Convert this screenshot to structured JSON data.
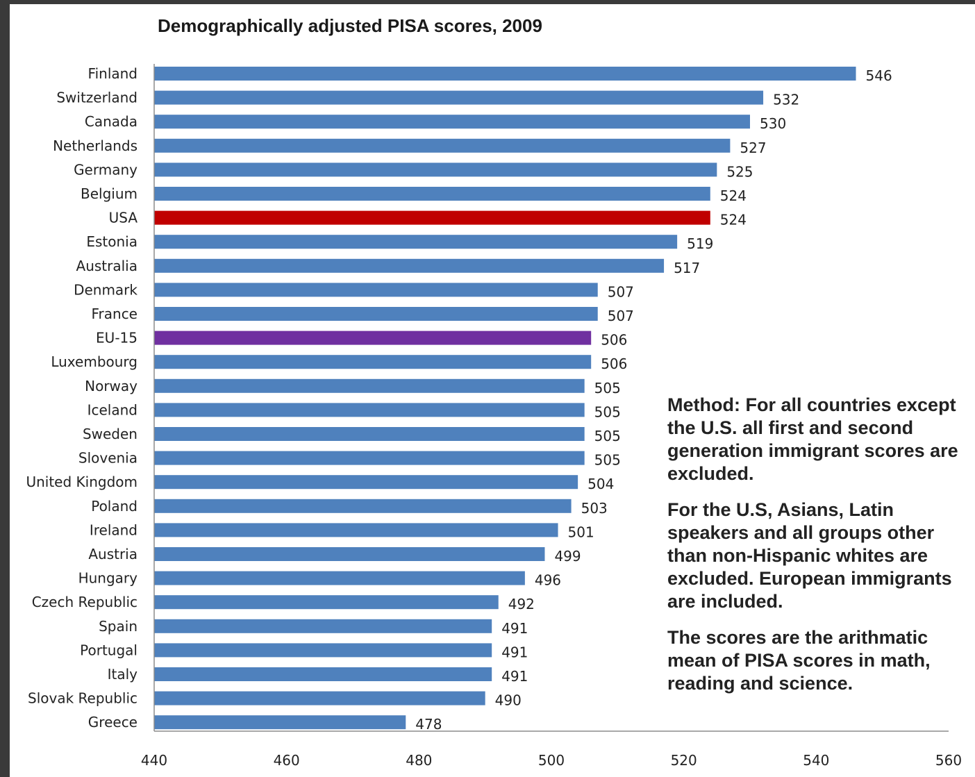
{
  "chart_data": {
    "type": "bar",
    "orientation": "horizontal",
    "title": "Demographically adjusted PISA scores, 2009",
    "categories": [
      "Finland",
      "Switzerland",
      "Canada",
      "Netherlands",
      "Germany",
      "Belgium",
      "USA",
      "Estonia",
      "Australia",
      "Denmark",
      "France",
      "EU-15",
      "Luxembourg",
      "Norway",
      "Iceland",
      "Sweden",
      "Slovenia",
      "United Kingdom",
      "Poland",
      "Ireland",
      "Austria",
      "Hungary",
      "Czech Republic",
      "Spain",
      "Portugal",
      "Italy",
      "Slovak Republic",
      "Greece"
    ],
    "values": [
      546,
      532,
      530,
      527,
      525,
      524,
      524,
      519,
      517,
      507,
      507,
      506,
      506,
      505,
      505,
      505,
      505,
      504,
      503,
      501,
      499,
      496,
      492,
      491,
      491,
      491,
      490,
      478
    ],
    "xlim": [
      440,
      560
    ],
    "xticks": [
      440,
      460,
      480,
      500,
      520,
      540,
      560
    ],
    "grid": false,
    "colors": {
      "default": "#4f81bd",
      "highlight": {
        "USA": "#c00000",
        "EU-15": "#7030a0"
      }
    }
  },
  "notes": [
    "Method: For all countries except the U.S. all first and second generation immigrant scores are excluded.",
    "For the U.S, Asians, Latin speakers and all groups other than non-Hispanic whites are excluded. European immigrants are included.",
    "The scores are the arithmatic mean of PISA scores in math, reading and science."
  ]
}
